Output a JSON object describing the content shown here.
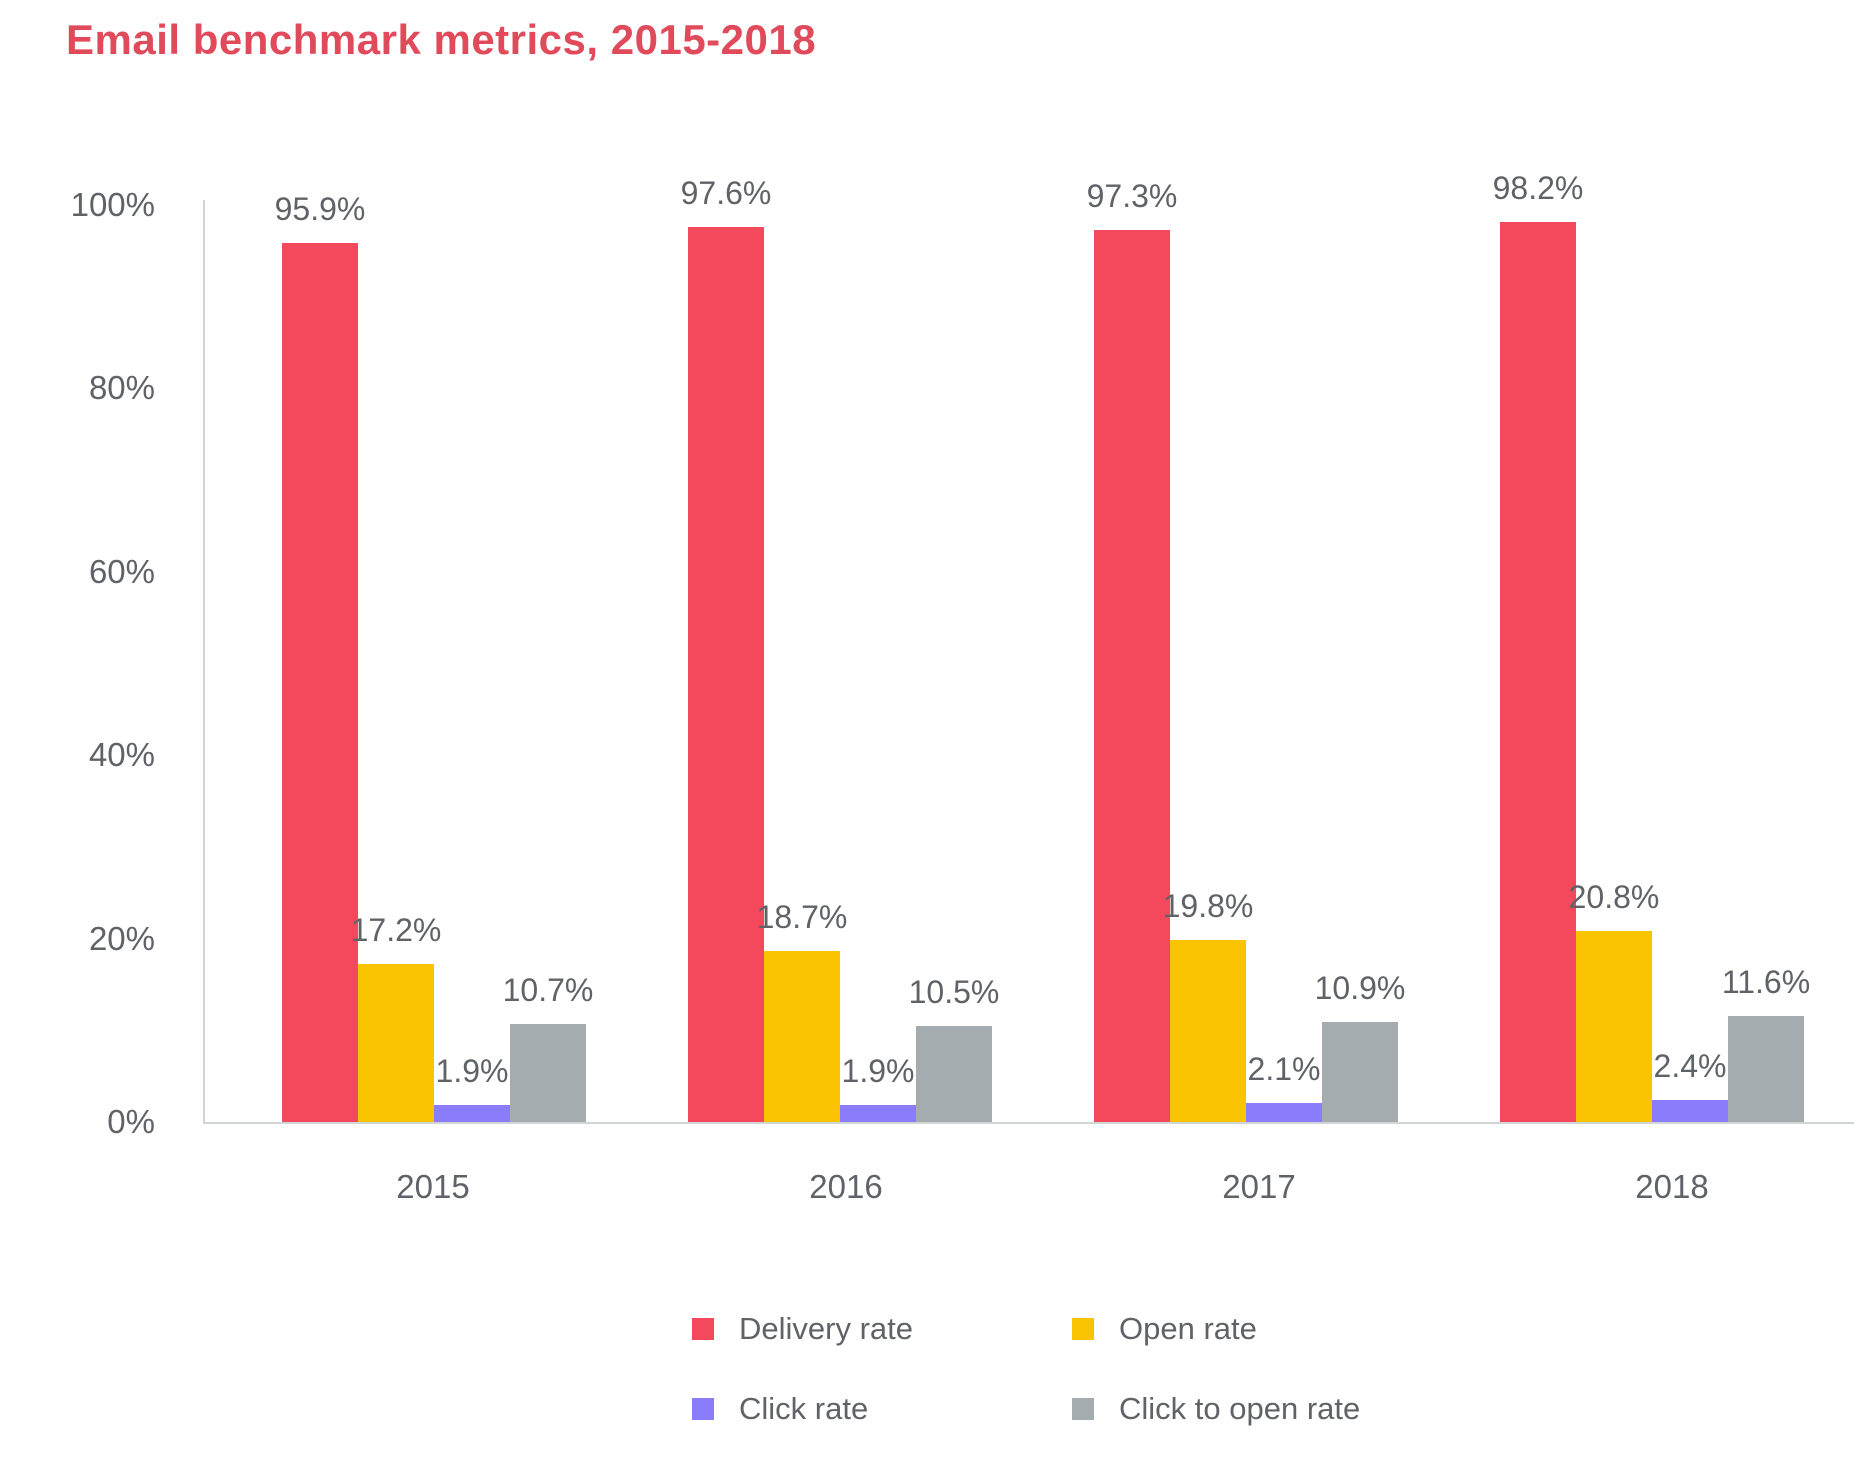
{
  "title": "Email benchmark metrics, 2015-2018",
  "chart_data": {
    "type": "bar",
    "title": "Email benchmark metrics, 2015-2018",
    "categories": [
      "2015",
      "2016",
      "2017",
      "2018"
    ],
    "series": [
      {
        "name": "Delivery rate",
        "color": "#F4485C",
        "values": [
          95.9,
          97.6,
          97.3,
          98.2
        ]
      },
      {
        "name": "Open rate",
        "color": "#FBC402",
        "values": [
          17.2,
          18.7,
          19.8,
          20.8
        ]
      },
      {
        "name": "Click rate",
        "color": "#8A7CFB",
        "values": [
          1.9,
          1.9,
          2.1,
          2.4
        ]
      },
      {
        "name": "Click to open rate",
        "color": "#A5ACAF",
        "values": [
          10.7,
          10.5,
          10.9,
          11.6
        ]
      }
    ],
    "xlabel": "",
    "ylabel": "",
    "ylim": [
      0,
      100
    ],
    "ytick_labels": [
      "100%",
      "80%",
      "60%",
      "40%",
      "20%",
      "0%"
    ],
    "value_label_suffix": "%",
    "value_label_decimals": 1,
    "grid": "off",
    "legend_position": "bottom"
  },
  "colors": {
    "title": "#E04A5A",
    "text": "#5F6368",
    "axis_line": "#D2D5D6"
  }
}
